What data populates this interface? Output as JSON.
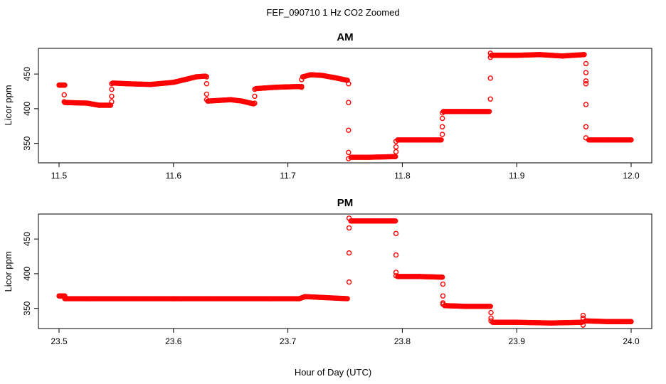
{
  "chart_data": {
    "type": "scatter",
    "title": "FEF_090710  1 Hz CO2 Zoomed",
    "xlabel": "Hour of Day (UTC)",
    "marker_color": "#ff0000",
    "marker": "open-circle",
    "panels": [
      {
        "title": "AM",
        "ylabel": "Licor ppm",
        "xlim": [
          11.5,
          12.0
        ],
        "ylim": [
          322,
          487
        ],
        "xticks": [
          11.5,
          11.6,
          11.7,
          11.8,
          11.9,
          12.0
        ],
        "xtick_labels": [
          "11.5",
          "11.6",
          "11.7",
          "11.8",
          "11.9",
          "12.0"
        ],
        "yticks": [
          350,
          400,
          450
        ],
        "ytick_labels": [
          "350",
          "400",
          "450"
        ],
        "segments": [
          {
            "x": [
              11.5,
              11.505
            ],
            "y": [
              434,
              434
            ]
          },
          {
            "x": [
              11.505,
              11.525,
              11.535,
              11.545
            ],
            "y": [
              409,
              408,
              405,
              405
            ]
          },
          {
            "x": [
              11.547,
              11.56,
              11.58,
              11.6,
              11.61,
              11.62,
              11.628
            ],
            "y": [
              437,
              436,
              435,
              438,
              442,
              446,
              447
            ]
          },
          {
            "x": [
              11.63,
              11.64,
              11.65,
              11.66,
              11.67
            ],
            "y": [
              411,
              412,
              413,
              411,
              407
            ]
          },
          {
            "x": [
              11.672,
              11.69,
              11.71,
              11.712
            ],
            "y": [
              429,
              431,
              432,
              431
            ]
          },
          {
            "x": [
              11.713,
              11.72,
              11.73,
              11.74,
              11.752
            ],
            "y": [
              446,
              449,
              448,
              445,
              441
            ]
          },
          {
            "x": [
              11.755,
              11.77,
              11.794
            ],
            "y": [
              330,
              330,
              331
            ]
          },
          {
            "x": [
              11.796,
              11.815,
              11.834
            ],
            "y": [
              355,
              355,
              355
            ]
          },
          {
            "x": [
              11.836,
              11.855,
              11.876
            ],
            "y": [
              396,
              396,
              396
            ]
          },
          {
            "x": [
              11.878,
              11.9,
              11.92,
              11.94,
              11.959
            ],
            "y": [
              477,
              477,
              478,
              476,
              478
            ]
          },
          {
            "x": [
              11.963,
              11.98,
              12.0
            ],
            "y": [
              355,
              355,
              355
            ]
          }
        ],
        "transitions": [
          {
            "x": 11.5045,
            "y": [
              434,
              420,
              410
            ]
          },
          {
            "x": 11.546,
            "y": [
              410,
              418,
              428,
              436
            ]
          },
          {
            "x": 11.629,
            "y": [
              446,
              436,
              421,
              413
            ]
          },
          {
            "x": 11.671,
            "y": [
              408,
              418,
              428
            ]
          },
          {
            "x": 11.712,
            "y": [
              432,
              442
            ]
          },
          {
            "x": 11.753,
            "y": [
              436,
              409,
              369,
              337,
              328
            ]
          },
          {
            "x": 11.7945,
            "y": [
              338,
              345,
              353
            ]
          },
          {
            "x": 11.835,
            "y": [
              363,
              374,
              386,
              394
            ]
          },
          {
            "x": 11.877,
            "y": [
              414,
              444,
              474,
              480
            ]
          },
          {
            "x": 11.9605,
            "y": [
              465,
              452,
              440,
              436,
              406,
              374,
              358
            ]
          }
        ]
      },
      {
        "title": "PM",
        "ylabel": "Licor ppm",
        "xlim": [
          23.5,
          24.0
        ],
        "ylim": [
          321,
          486
        ],
        "xticks": [
          23.5,
          23.6,
          23.7,
          23.8,
          23.9,
          24.0
        ],
        "xtick_labels": [
          "23.5",
          "23.6",
          "23.7",
          "23.8",
          "23.9",
          "24.0"
        ],
        "yticks": [
          350,
          400,
          450
        ],
        "ytick_labels": [
          "350",
          "400",
          "450"
        ],
        "segments": [
          {
            "x": [
              23.5,
              23.505
            ],
            "y": [
              368,
              368
            ]
          },
          {
            "x": [
              23.505,
              23.6,
              23.71,
              23.715,
              23.752
            ],
            "y": [
              364,
              364,
              364,
              367,
              364
            ]
          },
          {
            "x": [
              23.755,
              23.775,
              23.794
            ],
            "y": [
              476,
              476,
              476
            ]
          },
          {
            "x": [
              23.796,
              23.815,
              23.835
            ],
            "y": [
              396,
              396,
              395
            ]
          },
          {
            "x": [
              23.837,
              23.855,
              23.877
            ],
            "y": [
              354,
              353,
              353
            ]
          },
          {
            "x": [
              23.879,
              23.9,
              23.93,
              23.957
            ],
            "y": [
              330,
              330,
              329,
              330
            ]
          },
          {
            "x": [
              23.96,
              23.98,
              24.0
            ],
            "y": [
              332,
              331,
              331
            ]
          }
        ],
        "transitions": [
          {
            "x": 23.7535,
            "y": [
              388,
              430,
              466,
              480
            ]
          },
          {
            "x": 23.7945,
            "y": [
              458,
              427,
              402,
              397
            ]
          },
          {
            "x": 23.8355,
            "y": [
              385,
              368,
              358,
              356
            ]
          },
          {
            "x": 23.8775,
            "y": [
              344,
              336,
              332
            ]
          },
          {
            "x": 23.958,
            "y": [
              326,
              340,
              336
            ]
          }
        ]
      }
    ]
  }
}
